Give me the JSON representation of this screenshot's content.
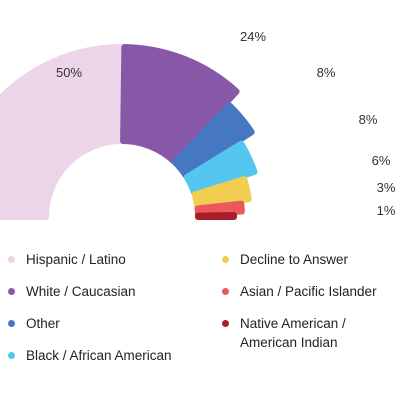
{
  "chart_data": {
    "type": "pie",
    "style": "half-donut, exploded rounded segments of decreasing radius",
    "categories": [
      "Hispanic / Latino",
      "White / Caucasian",
      "Other",
      "Black / African American",
      "Decline to Answer",
      "Asian / Pacific Islander",
      "Native American / American Indian"
    ],
    "values": [
      50,
      24,
      8,
      8,
      6,
      3,
      1
    ],
    "labels": [
      "50%",
      "24%",
      "8%",
      "8%",
      "6%",
      "3%",
      "1%"
    ],
    "colors": [
      "#ecd5e8",
      "#8858a8",
      "#4677c2",
      "#55c6ef",
      "#f3cd4f",
      "#ea5a5c",
      "#a71e2b"
    ],
    "legend_position": "bottom",
    "grid": false
  },
  "legend": {
    "items": [
      {
        "label": "Hispanic / Latino",
        "color": "#ecd5e8"
      },
      {
        "label": "White / Caucasian",
        "color": "#8858a8"
      },
      {
        "label": "Other",
        "color": "#4677c2"
      },
      {
        "label": "Black / African American",
        "color": "#55c6ef"
      },
      {
        "label": "Decline to Answer",
        "color": "#f3cd4f"
      },
      {
        "label": "Asian / Pacific Islander",
        "color": "#ea5a5c"
      },
      {
        "label": "Native American /\nAmerican Indian",
        "color": "#a71e2b"
      }
    ]
  }
}
